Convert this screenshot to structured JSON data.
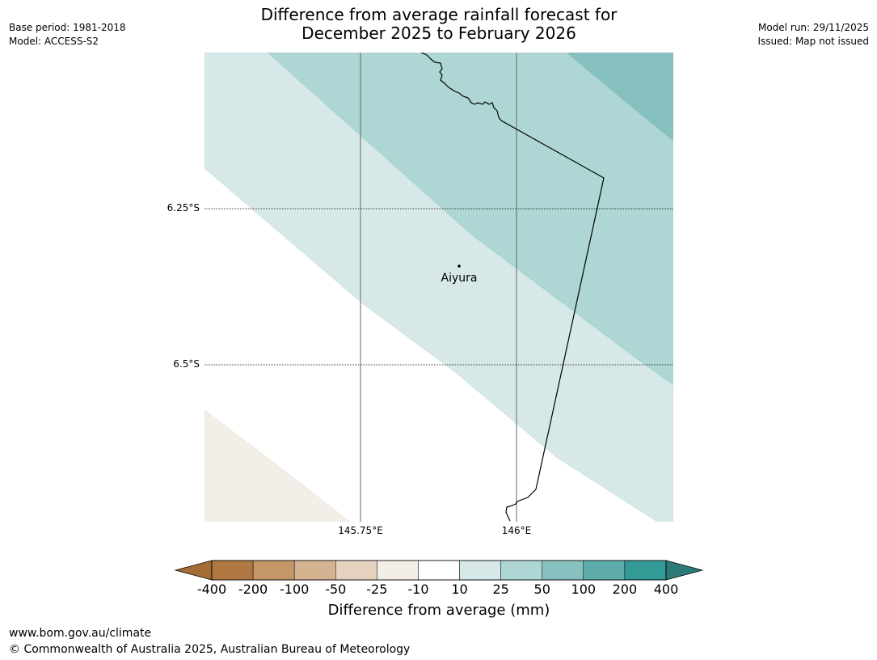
{
  "title": {
    "line1": "Difference from average rainfall forecast for",
    "line2": "December 2025 to February 2026"
  },
  "meta_left": {
    "base_period": "Base period: 1981-2018",
    "model": "Model: ACCESS-S2"
  },
  "meta_right": {
    "model_run": "Model run: 29/11/2025",
    "issued": "Issued: Map not issued"
  },
  "map": {
    "latitude_labels": [
      "6.25°S",
      "6.5°S"
    ],
    "longitude_labels": [
      "145.75°E",
      "146°E"
    ],
    "place": {
      "name": "Aiyura",
      "type": "town-marker"
    }
  },
  "colorbar": {
    "label": "Difference from average (mm)",
    "ticks": [
      "-400",
      "-200",
      "-100",
      "-50",
      "-25",
      "-10",
      "10",
      "25",
      "50",
      "100",
      "200",
      "400"
    ],
    "colors": [
      "#a46b37",
      "#b07843",
      "#c59668",
      "#d5b391",
      "#e5d1bd",
      "#f3eee7",
      "#ffffff",
      "#d6e9e8",
      "#aed6d5",
      "#86c1bf",
      "#5eacaa",
      "#349a96",
      "#2c7b78"
    ]
  },
  "footer": {
    "url": "www.bom.gov.au/climate",
    "copyright": "© Commonwealth of Australia 2025, Australian Bureau of Meteorology"
  }
}
